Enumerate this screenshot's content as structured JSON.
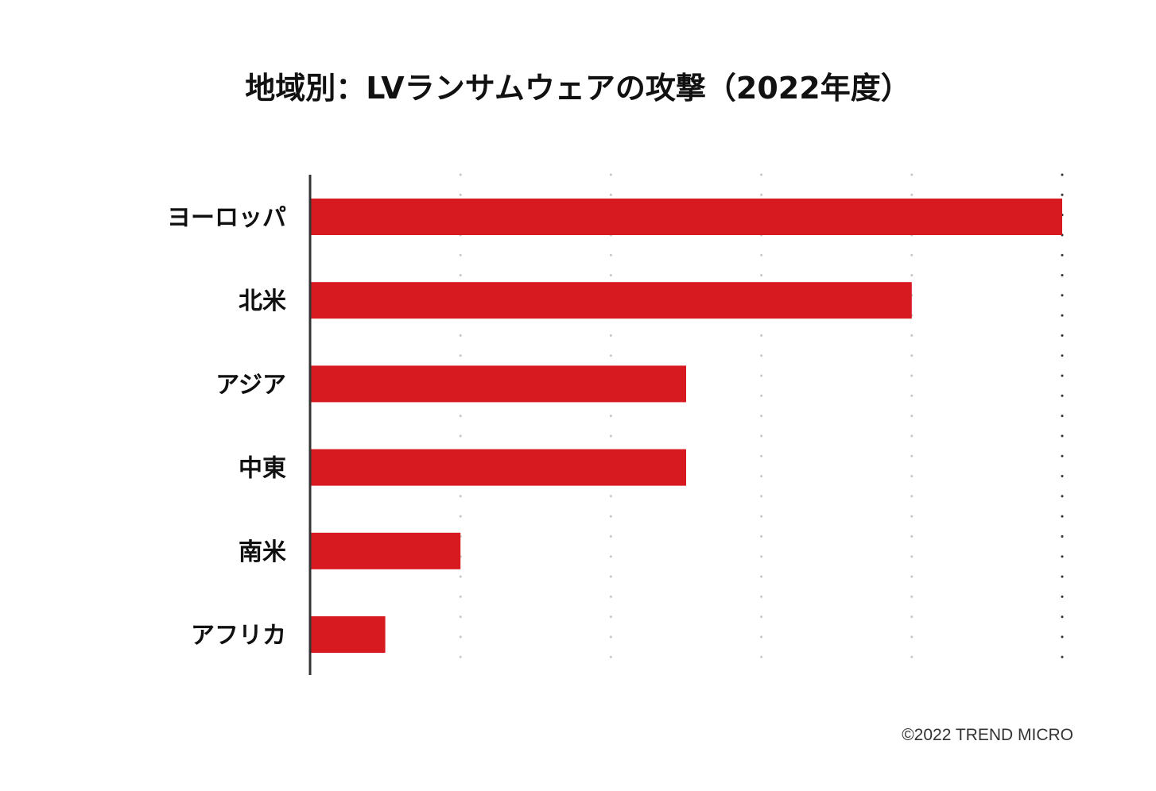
{
  "chart_data": {
    "type": "bar",
    "orientation": "horizontal",
    "title": "地域別：LVランサムウェアの攻撃（2022年度）",
    "categories": [
      "ヨーロッパ",
      "北米",
      "アジア",
      "中東",
      "南米",
      "アフリカ"
    ],
    "values": [
      10,
      8,
      5,
      5,
      2,
      1
    ],
    "xlim": [
      0,
      10
    ],
    "gridlines": [
      2,
      4,
      6,
      8,
      10
    ],
    "tick_labels_shown": false,
    "xlabel": "",
    "ylabel": "",
    "legend": "none",
    "colors": {
      "bar": "#d71920",
      "axis": "#333333",
      "grid": "#c8c8c8",
      "grid_last": "#333333"
    }
  },
  "footer": {
    "credit": "©2022 TREND MICRO"
  }
}
